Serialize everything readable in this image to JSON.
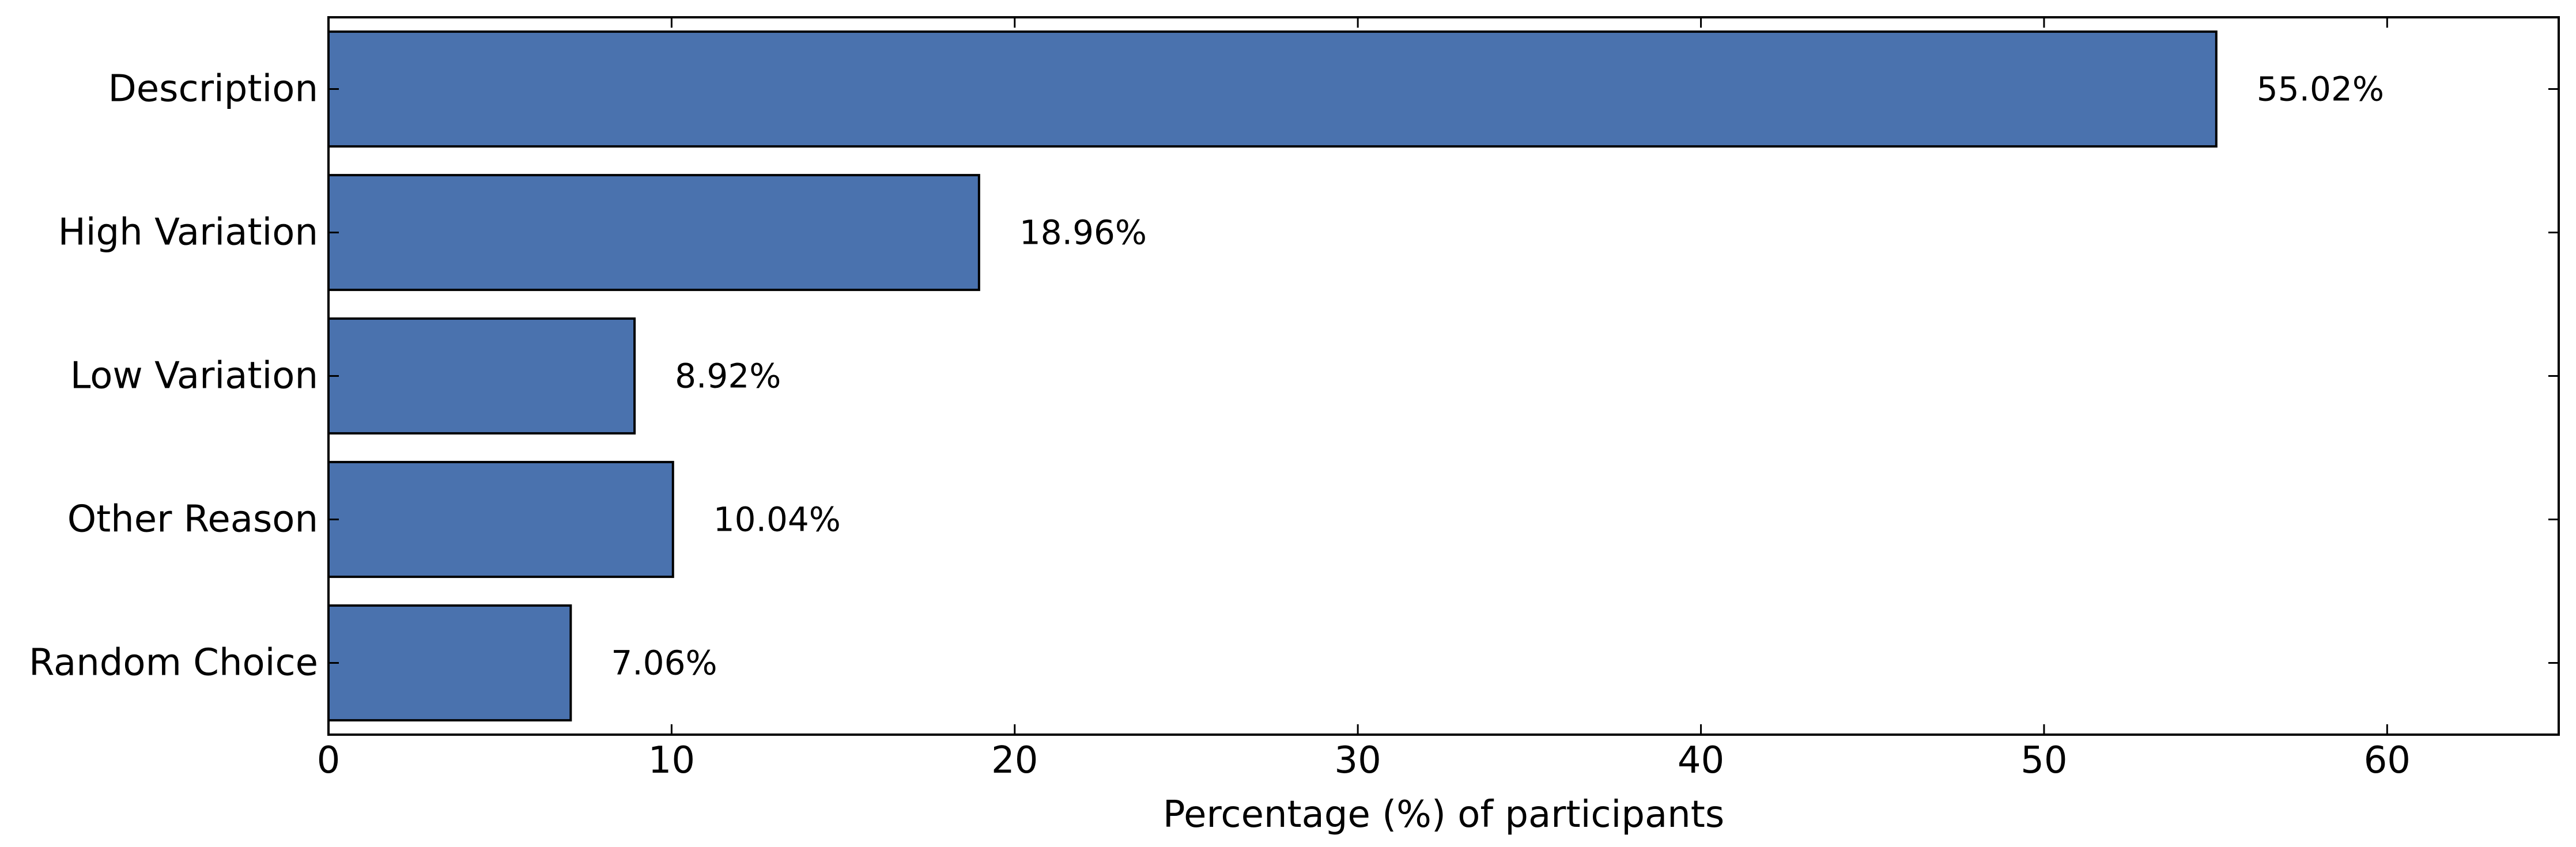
{
  "chart_data": {
    "type": "bar",
    "orientation": "horizontal",
    "categories": [
      "Description",
      "High Variation",
      "Low Variation",
      "Other Reason",
      "Random Choice"
    ],
    "values": [
      55.02,
      18.96,
      8.92,
      10.04,
      7.06
    ],
    "value_labels": [
      "55.02%",
      "18.96%",
      "8.92%",
      "10.04%",
      "7.06%"
    ],
    "xlabel": "Percentage (%) of participants",
    "ylabel": "",
    "xlim": [
      0,
      65
    ],
    "xticks": [
      0,
      10,
      20,
      30,
      40,
      50,
      60
    ],
    "grid": false,
    "legend": "none",
    "bar_color": "#4a72ae",
    "edge_color": "#000000"
  }
}
